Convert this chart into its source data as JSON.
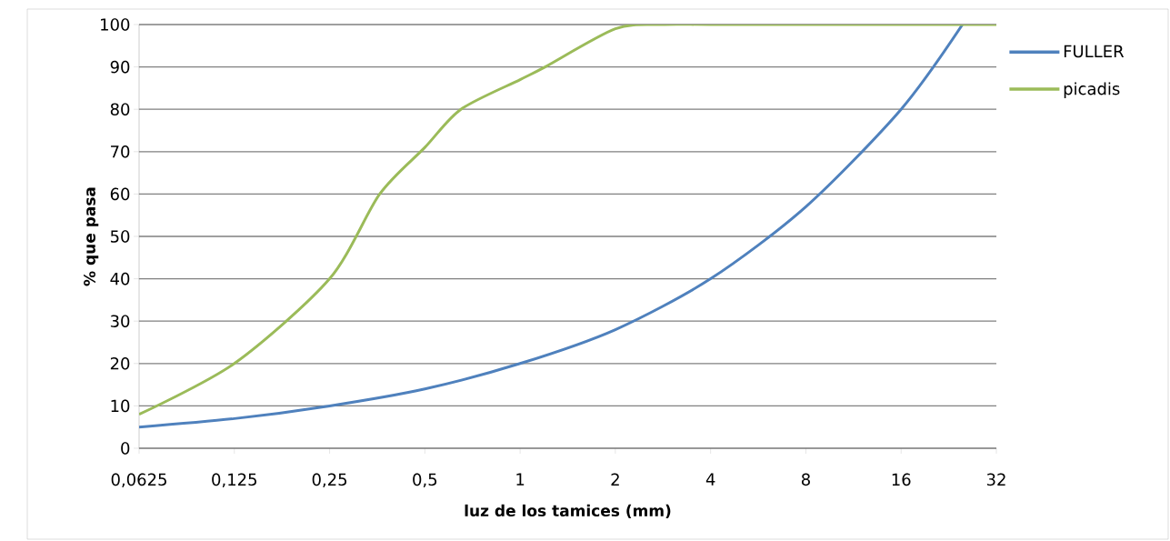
{
  "chart_data": {
    "type": "line",
    "xlabel": "luz de los tamices (mm)",
    "ylabel": "% que pasa",
    "log": "x",
    "grid": "y",
    "legend": "right",
    "marker": "none",
    "line_style": "solid",
    "xlim": [
      0.0625,
      32
    ],
    "ylim": [
      0,
      100
    ],
    "xticks": [
      {
        "value": 0.0625,
        "label": "0,0625"
      },
      {
        "value": 0.125,
        "label": "0,125"
      },
      {
        "value": 0.25,
        "label": "0,25"
      },
      {
        "value": 0.5,
        "label": "0,5"
      },
      1,
      2,
      4,
      8,
      16,
      32
    ],
    "yticks": [
      0,
      10,
      20,
      30,
      40,
      50,
      60,
      70,
      80,
      90,
      100
    ],
    "series": [
      {
        "name": "FULLER",
        "color": "#4f81bd",
        "x": [
          0.0625,
          0.125,
          0.25,
          0.5,
          1,
          2,
          4,
          8,
          16,
          25
        ],
        "values": [
          5,
          7,
          10,
          14,
          20,
          28,
          40,
          57,
          80,
          100
        ]
      },
      {
        "name": "picadis",
        "color": "#9bbb59",
        "x": [
          0.0625,
          0.125,
          0.25,
          0.36,
          0.5,
          0.65,
          1,
          1.2,
          2,
          2.8,
          4,
          8,
          16,
          32
        ],
        "values": [
          8,
          20,
          40,
          60,
          71,
          80,
          87,
          90,
          99,
          100,
          100,
          100,
          100,
          100
        ]
      }
    ]
  }
}
